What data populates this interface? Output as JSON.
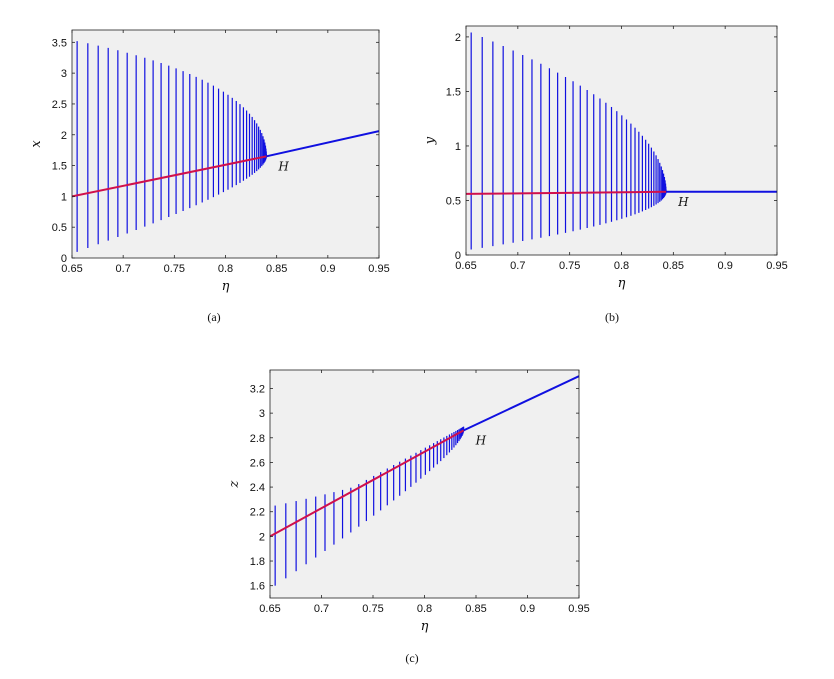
{
  "chart_data": [
    {
      "type": "line",
      "caption": "(a)",
      "xlabel": "η",
      "ylabel": "x",
      "xlim": [
        0.65,
        0.95
      ],
      "ylim": [
        0,
        3.7
      ],
      "xticks": [
        0.65,
        0.7,
        0.75,
        0.8,
        0.85,
        0.9,
        0.95
      ],
      "yticks": [
        0,
        0.5,
        1,
        1.5,
        2,
        2.5,
        3,
        3.5
      ],
      "xtick_labels": [
        "0.65",
        "0.7",
        "0.75",
        "0.8",
        "0.85",
        "0.9",
        "0.95"
      ],
      "ytick_labels": [
        "0",
        "0.5",
        "1",
        "1.5",
        "2",
        "2.5",
        "3",
        "3.5"
      ],
      "background": "#f0f0f0",
      "colors": {
        "unstable": "#d0104c",
        "stable": "#1010e0",
        "oscillation": "#1010e0"
      },
      "hopf": {
        "label": "H",
        "eta": 0.84,
        "value": 1.65
      },
      "unstable_branch": {
        "x": [
          0.65,
          0.84
        ],
        "y": [
          1.0,
          1.65
        ]
      },
      "stable_branch": {
        "x": [
          0.84,
          0.95
        ],
        "y": [
          1.65,
          2.06
        ]
      },
      "oscillation_envelope": {
        "eta_start": 0.655,
        "eta_end": 0.84,
        "max_start": 3.52,
        "min_start": 0.1,
        "bars": 40
      }
    },
    {
      "type": "line",
      "caption": "(b)",
      "xlabel": "η",
      "ylabel": "y",
      "xlim": [
        0.65,
        0.95
      ],
      "ylim": [
        0,
        2.1
      ],
      "xticks": [
        0.65,
        0.7,
        0.75,
        0.8,
        0.85,
        0.9,
        0.95
      ],
      "yticks": [
        0,
        0.5,
        1,
        1.5,
        2
      ],
      "xtick_labels": [
        "0.65",
        "0.7",
        "0.75",
        "0.8",
        "0.85",
        "0.9",
        "0.95"
      ],
      "ytick_labels": [
        "0",
        "0.5",
        "1",
        "1.5",
        "2"
      ],
      "background": "#f0f0f0",
      "colors": {
        "unstable": "#d0104c",
        "stable": "#1010e0",
        "oscillation": "#1010e0"
      },
      "hopf": {
        "label": "H",
        "eta": 0.843,
        "value": 0.58
      },
      "unstable_branch": {
        "x": [
          0.65,
          0.843
        ],
        "y": [
          0.56,
          0.58
        ]
      },
      "stable_branch": {
        "x": [
          0.843,
          0.95
        ],
        "y": [
          0.58,
          0.58
        ]
      },
      "oscillation_envelope": {
        "eta_start": 0.655,
        "eta_end": 0.843,
        "max_start": 2.04,
        "min_start": 0.05,
        "bars": 40
      }
    },
    {
      "type": "line",
      "caption": "(c)",
      "xlabel": "η",
      "ylabel": "z",
      "xlim": [
        0.65,
        0.95
      ],
      "ylim": [
        1.5,
        3.35
      ],
      "xticks": [
        0.65,
        0.7,
        0.75,
        0.8,
        0.85,
        0.9,
        0.95
      ],
      "yticks": [
        1.6,
        1.8,
        2,
        2.2,
        2.4,
        2.6,
        2.8,
        3,
        3.2
      ],
      "xtick_labels": [
        "0.65",
        "0.7",
        "0.75",
        "0.8",
        "0.85",
        "0.9",
        "0.95"
      ],
      "ytick_labels": [
        "1.6",
        "1.8",
        "2",
        "2.2",
        "2.4",
        "2.6",
        "2.8",
        "3",
        "3.2"
      ],
      "background": "#f0f0f0",
      "colors": {
        "unstable": "#d0104c",
        "stable": "#1010e0",
        "oscillation": "#1010e0"
      },
      "hopf": {
        "label": "H",
        "eta": 0.838,
        "value": 2.86
      },
      "unstable_branch": {
        "x": [
          0.65,
          0.838
        ],
        "y": [
          2.0,
          2.86
        ]
      },
      "stable_branch": {
        "x": [
          0.838,
          0.95
        ],
        "y": [
          2.86,
          3.3
        ]
      },
      "oscillation_envelope": {
        "eta_start": 0.655,
        "eta_end": 0.838,
        "max_start": 2.25,
        "min_start": 1.6,
        "max_end": 2.92,
        "min_end": 2.79,
        "bars": 40
      }
    }
  ]
}
